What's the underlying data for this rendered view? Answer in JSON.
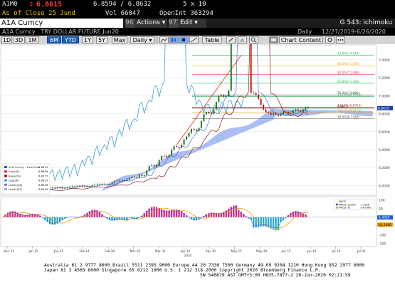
{
  "header": {
    "ticker": "A1M0",
    "last_prefix": "s",
    "last_value": "6.8615",
    "bid_ask": "6.8594 / 6.8632",
    "size": "5 x 10",
    "close_label": "As of Close 25 Jund",
    "vol": "Vol  66047",
    "open_int": "OpenInt  363294",
    "security": "A1A Curncy",
    "actions_num": "96)",
    "actions_label": "Actions ▾",
    "edit_num": "97)",
    "edit_label": "Edit ▾",
    "study_title": "G 543: ichimoku"
  },
  "subheader": {
    "title": "A1A Curncy : TRY DOLLAR FUTURE Jun20",
    "period": "Daily",
    "range": "12/27/2019-6/26/2020"
  },
  "toolbar": {
    "ranges": [
      "1D",
      "3D",
      "1M",
      "6M",
      "YTD",
      "1Y",
      "5Y",
      "Max"
    ],
    "selected_ranges": [
      "6M",
      "YTD"
    ],
    "frequency": "Daily ▾",
    "table_label": "Table",
    "chart_content_label": "Chart Content"
  },
  "chart_data": {
    "type": "line",
    "upper_y_ticks": [
      "7.4000",
      "7.2000",
      "7.0000",
      "6.8000",
      "6.6000",
      "6.4000",
      "6.2000",
      "6.0000"
    ],
    "fib_labels": [
      {
        "label": "23.6%(7.4524)",
        "value": 7.4524,
        "color": "#22b14c"
      },
      {
        "label": "38.2%(7.3339)",
        "value": 7.3339,
        "color": "#e8a000"
      },
      {
        "label": "50.0%(7.2368)",
        "value": 7.2368,
        "color": "#d64040"
      },
      {
        "label": "61.8%(7.1391)",
        "value": 7.1391,
        "color": "#22b14c"
      },
      {
        "label": "76.4%(7.0089)",
        "value": 7.0089,
        "color": "#555555"
      },
      {
        "label": "100.0%(6.8700)",
        "value": 6.87,
        "color": "#e04040"
      },
      {
        "label": "123.6%(6.9913)",
        "value": 6.9913,
        "color": "#22b14c"
      },
      {
        "label": "6.8615",
        "value": 6.8615,
        "color": "#000000"
      },
      {
        "label": "138.2%(6.8116)",
        "value": 6.8116,
        "color": "#e8a000"
      },
      {
        "label": "76.4%(6.7458)",
        "value": 6.7458,
        "color": "#555555"
      }
    ],
    "last_price": "6.8615",
    "legend": [
      {
        "name": "A1A Curncy - Last Price",
        "value": "6.8615",
        "color": "#2060d0"
      },
      {
        "name": "Conv(9)",
        "value": "6.8659",
        "color": "#d62728"
      },
      {
        "name": "Base(26)",
        "value": "6.8577",
        "color": "#8b1a1a"
      },
      {
        "name": "Lag(26)",
        "value": "6.8615",
        "color": "#3aa0d0"
      },
      {
        "name": "Lead1(26)",
        "value": "6.8618",
        "color": "#7c6cd0"
      },
      {
        "name": "Lead2(52)",
        "value": "6.8339",
        "color": "#a8a8e0"
      }
    ],
    "macd_legend": [
      {
        "name": "MACD",
        "color": "#000"
      },
      {
        "name": "MACD (12/26)",
        "value": "-1.4326",
        "color": "#2060d0"
      },
      {
        "name": "MACD (9)",
        "value": "-14.1460",
        "color": "#e8a000"
      }
    ],
    "macd_y_ticks": [
      "100",
      "50",
      "0",
      "-50",
      "-100",
      "-150"
    ],
    "macd_value_label": "-1.4326",
    "macd_signal_label": "-14.1460",
    "x_ticks": [
      "Dec 31",
      "Jan 15",
      "Jan 31",
      "Feb 14",
      "Feb 28",
      "Mar 16",
      "Mar 31",
      "Apr 15",
      "Apr 30",
      "May 15",
      "May 29",
      "Jun 15",
      "Jun 30",
      "Jul 15",
      "Jul 31"
    ],
    "year_label": "2020"
  },
  "footer": {
    "line1": "Australia 61 2 9777 8600 Brazil 5511 2395 9000 Europe 44 20 7330 7500 Germany 49 69 9204 1210 Hong Kong 852 2977 6000",
    "line2": "Japan 81 3 4565 8900       Singapore 65 6212 1000      U.S. 1 212 318 2000        Copyright 2020 Bloomberg Finance L.P.",
    "line3": "SN 546679 AST  GMT+3:00 H835-7877-2 26-Jun-2020 02:21:59"
  }
}
